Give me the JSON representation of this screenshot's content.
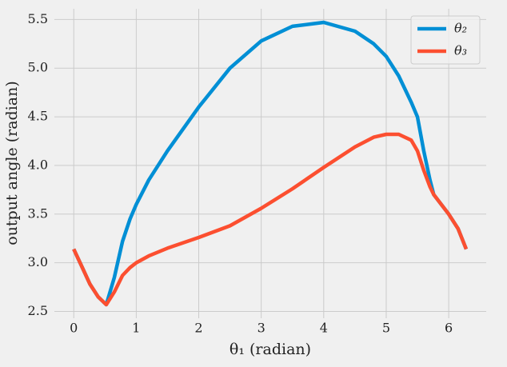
{
  "chart_data": {
    "type": "line",
    "xlabel": "θ₁ (radian)",
    "ylabel": "output angle (radian)",
    "x": [
      0,
      0.13,
      0.26,
      0.39,
      0.52,
      0.65,
      0.78,
      0.9,
      1.0,
      1.2,
      1.5,
      2.0,
      2.5,
      3.0,
      3.5,
      4.0,
      4.5,
      4.8,
      5.0,
      5.2,
      5.4,
      5.5,
      5.6,
      5.7,
      5.76,
      6.0,
      6.15,
      6.28
    ],
    "series": [
      {
        "name": "θ₂",
        "color": "#008fd5",
        "values": [
          3.14,
          2.96,
          2.78,
          2.65,
          2.57,
          2.85,
          3.22,
          3.45,
          3.6,
          3.85,
          4.15,
          4.6,
          5.0,
          5.28,
          5.43,
          5.47,
          5.38,
          5.25,
          5.12,
          4.92,
          4.65,
          4.5,
          4.15,
          3.85,
          3.7,
          3.5,
          3.35,
          3.14
        ]
      },
      {
        "name": "θ₃",
        "color": "#fc4f30",
        "values": [
          3.14,
          2.96,
          2.78,
          2.65,
          2.57,
          2.7,
          2.87,
          2.95,
          3.0,
          3.07,
          3.15,
          3.26,
          3.38,
          3.56,
          3.76,
          3.98,
          4.19,
          4.29,
          4.32,
          4.32,
          4.26,
          4.15,
          3.95,
          3.78,
          3.7,
          3.5,
          3.35,
          3.14
        ]
      }
    ],
    "xlim": [
      -0.31,
      6.6
    ],
    "ylim": [
      2.43,
      5.61
    ],
    "xticks": [
      0,
      1,
      2,
      3,
      4,
      5,
      6
    ],
    "yticks": [
      2.5,
      {
        "value": 3,
        "label": "3.0"
      },
      3.5,
      {
        "value": 4,
        "label": "4.0"
      },
      4.5,
      {
        "value": 5,
        "label": "5.0"
      },
      5.5
    ],
    "grid": true,
    "legend": "upper right"
  }
}
